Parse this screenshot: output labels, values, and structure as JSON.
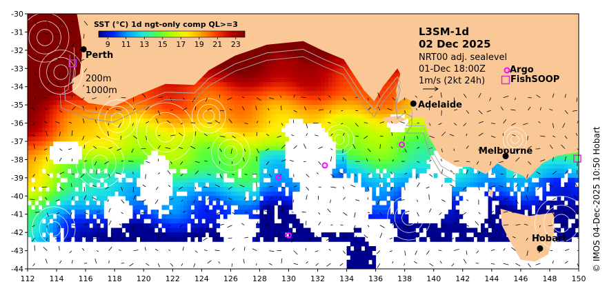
{
  "product": {
    "title": "L3SM-1d",
    "date": "02 Dec 2025"
  },
  "info": {
    "sealevel": "NRT00 adj. sealevel",
    "valid_time": "01-Dec 18:00Z",
    "current_scale": "1m/s (2kt 24h)"
  },
  "legend": {
    "argo": "Argo",
    "fishsoop": "FishSOOP",
    "argo_color": "#ff00ff",
    "fishsoop_color": "#cc33cc"
  },
  "isobaths": {
    "shallow": "200m",
    "deep": "1000m"
  },
  "colorbar": {
    "title": "SST (°C) 1d ngt-only comp QL>=3",
    "ticks": [
      "9",
      "11",
      "13",
      "15",
      "17",
      "19",
      "21",
      "23"
    ],
    "range_c": [
      8,
      24
    ],
    "colors": [
      "#00008f",
      "#0024ff",
      "#00a4ff",
      "#1ee5e1",
      "#4cff46",
      "#b4ff00",
      "#fff000",
      "#ffa000",
      "#ff4000",
      "#c00000",
      "#800000"
    ]
  },
  "axes": {
    "x_ticks": [
      "112",
      "114",
      "116",
      "118",
      "120",
      "122",
      "124",
      "126",
      "128",
      "130",
      "132",
      "134",
      "136",
      "138",
      "140",
      "142",
      "144",
      "146",
      "148",
      "150"
    ],
    "y_ticks": [
      "-30",
      "-31",
      "-32",
      "-33",
      "-34",
      "-35",
      "-36",
      "-37",
      "-38",
      "-39",
      "-40",
      "-41",
      "-42",
      "-43",
      "-44"
    ],
    "lon_range": [
      112,
      150
    ],
    "lat_range": [
      -44,
      -30
    ]
  },
  "colors": {
    "land": "#fac896",
    "no_data": "#ffffff",
    "frame": "#000000"
  },
  "cities": [
    {
      "name": "Perth",
      "lon": 115.86,
      "lat": -31.95
    },
    {
      "name": "Adelaide",
      "lon": 138.6,
      "lat": -34.93
    },
    {
      "name": "Melbourne",
      "lon": 144.96,
      "lat": -37.81
    },
    {
      "name": "Hobart",
      "lon": 147.33,
      "lat": -42.88
    }
  ],
  "argo_floats": [
    {
      "lon": 129.3,
      "lat": -38.98
    },
    {
      "lon": 132.5,
      "lat": -38.32
    },
    {
      "lon": 137.8,
      "lat": -37.18
    },
    {
      "lon": 130.0,
      "lat": -42.15
    }
  ],
  "fishsoop_obs": [
    {
      "lon": 115.1,
      "lat": -32.72
    },
    {
      "lon": 149.9,
      "lat": -37.95
    }
  ],
  "credit": "© IMOS 04-Dec-2025 10:50 Hobart"
}
